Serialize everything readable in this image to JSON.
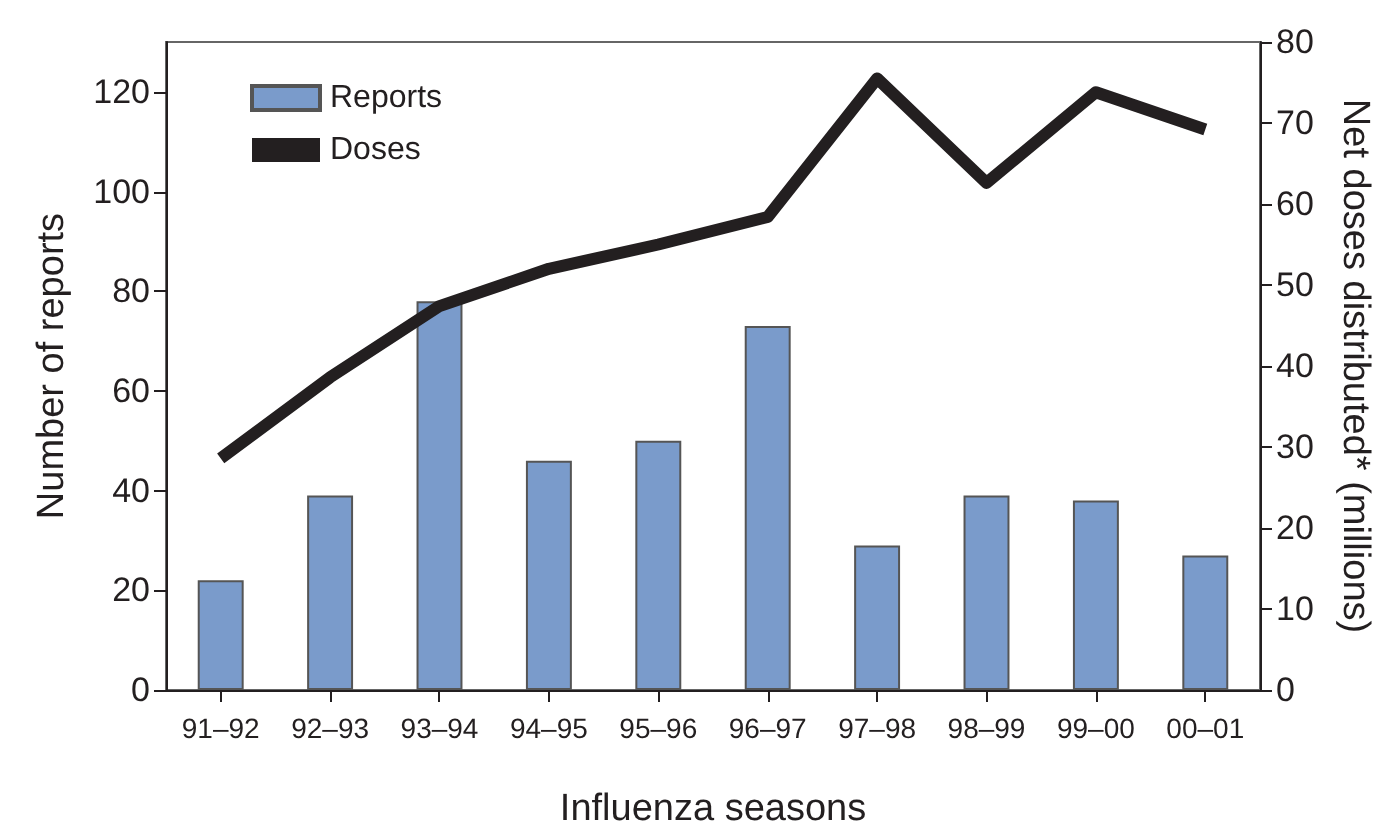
{
  "chart_data": {
    "type": "bar",
    "xlabel": "Influenza seasons",
    "ylabel": "Number of reports",
    "y2label": "Net doses distributed* (millions)",
    "categories": [
      "91–92",
      "92–93",
      "93–94",
      "94–95",
      "95–96",
      "96–97",
      "97–98",
      "98–99",
      "99–00",
      "00–01"
    ],
    "series": [
      {
        "name": "Reports",
        "color": "#7a9bcb",
        "values": [
          22,
          39,
          78,
          46,
          50,
          73,
          29,
          39,
          38,
          27
        ]
      },
      {
        "name": "Doses",
        "type": "line",
        "axis": "y2",
        "color": "#231f20",
        "marker": "none",
        "values": [
          28.6,
          38.6,
          47.4,
          52,
          55,
          58.4,
          75.5,
          62.6,
          73.8,
          69.2
        ]
      }
    ],
    "ylim": [
      0,
      130
    ],
    "yticks": [
      0,
      20,
      40,
      60,
      80,
      100,
      120
    ],
    "y2lim": [
      0,
      80
    ],
    "y2ticks": [
      0,
      10,
      20,
      30,
      40,
      50,
      60,
      70,
      80
    ],
    "grid": false,
    "legend": "top left"
  }
}
